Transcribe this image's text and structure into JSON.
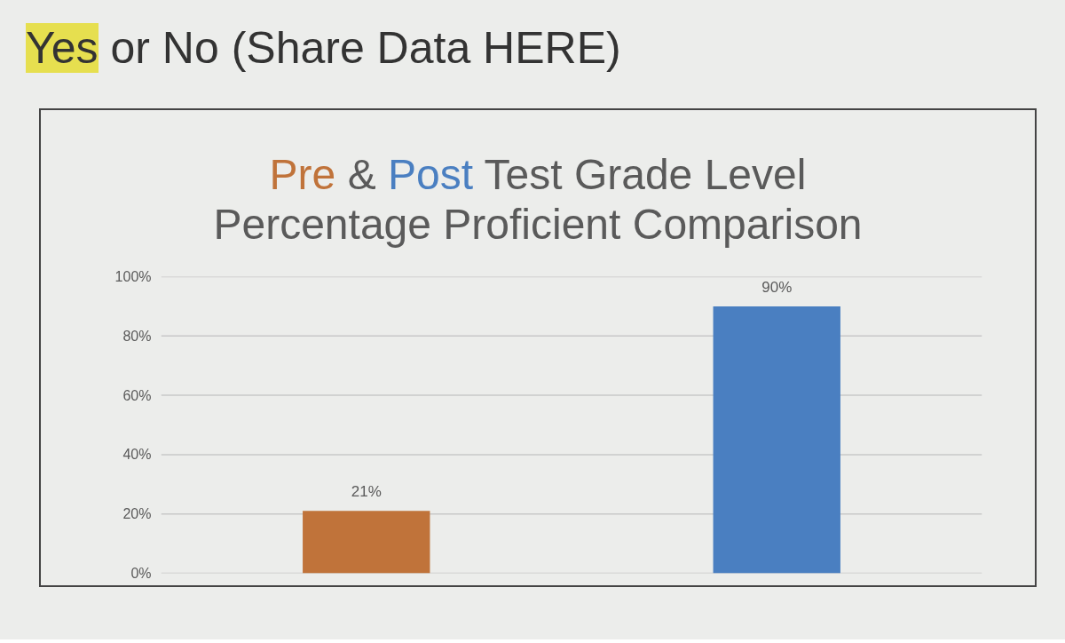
{
  "chart_data": {
    "type": "bar",
    "title": "Pre & Post Test Grade Level Percentage Proficient Comparison",
    "annotations": [
      "Yes or No (Share Data HERE)"
    ],
    "categories": [
      null,
      null
    ],
    "values": [
      21,
      90
    ],
    "colors": [
      "#c0733a",
      "#4a7fc1"
    ],
    "value_labels": [
      "21%",
      "90%"
    ],
    "ylim": [
      0,
      100
    ],
    "yticks": [
      {
        "value": 0,
        "label": "0%"
      },
      {
        "value": 20,
        "label": "20%"
      },
      {
        "value": 40,
        "label": "40%"
      },
      {
        "value": 60,
        "label": "60%"
      },
      {
        "value": 80,
        "label": "80%"
      },
      {
        "value": 100,
        "label": "100%"
      }
    ],
    "grid": "y",
    "tick_labels": "y"
  }
}
